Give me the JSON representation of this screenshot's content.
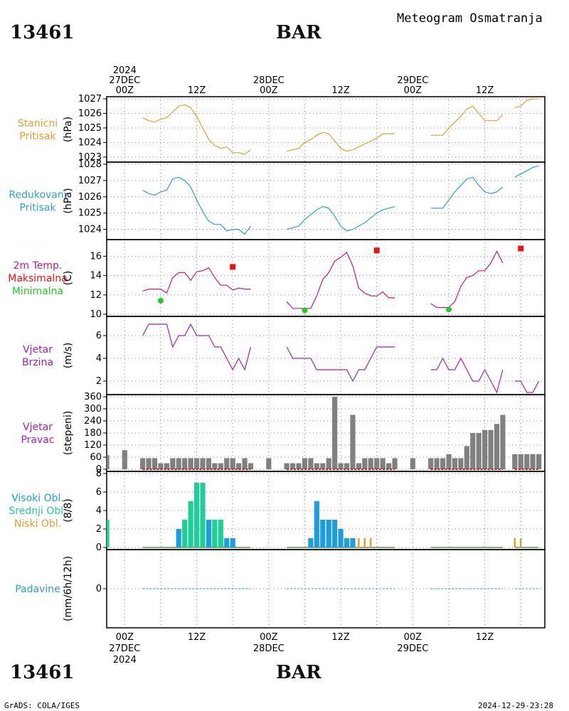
{
  "header": {
    "station": "13461",
    "name": "BAR",
    "title": "Meteogram Osmatranja"
  },
  "footer": {
    "credit": "GrADS: COLA/IGES",
    "timestamp": "2024-12-29-23:28"
  },
  "time_axis": {
    "top": [
      {
        "hour": 0,
        "lines": [
          "2024",
          "27DEC",
          "00Z"
        ]
      },
      {
        "hour": 12,
        "lines": [
          "12Z"
        ]
      },
      {
        "hour": 24,
        "lines": [
          "28DEC",
          "00Z"
        ]
      },
      {
        "hour": 36,
        "lines": [
          "12Z"
        ]
      },
      {
        "hour": 48,
        "lines": [
          "29DEC",
          "00Z"
        ]
      },
      {
        "hour": 60,
        "lines": [
          "12Z"
        ]
      }
    ],
    "bottom": [
      {
        "hour": 0,
        "lines": [
          "00Z",
          "27DEC",
          "2024"
        ]
      },
      {
        "hour": 12,
        "lines": [
          "12Z"
        ]
      },
      {
        "hour": 24,
        "lines": [
          "00Z",
          "28DEC"
        ]
      },
      {
        "hour": 36,
        "lines": [
          "12Z"
        ]
      },
      {
        "hour": 48,
        "lines": [
          "00Z",
          "29DEC"
        ]
      },
      {
        "hour": 60,
        "lines": [
          "12Z"
        ]
      }
    ],
    "x_range_hours": [
      -3,
      70
    ]
  },
  "colors": {
    "station_pressure": "#e0a030",
    "reduced_pressure": "#2ea0d0",
    "tmax": "#ee1111",
    "tmin": "#22cc22",
    "temp_line": "#cc1a7a",
    "wind": "#a020c0",
    "bars": "#808080",
    "high_cloud": "#1b9de0",
    "mid_cloud": "#1fcf98",
    "low_cloud": "#e0a030",
    "precip": "#2ea0d0",
    "grid": "#888888"
  },
  "panels": [
    {
      "key": "sp",
      "labels": [
        {
          "text": "Stanicni",
          "color": "#e0a030"
        },
        {
          "text": "Pritisak",
          "color": "#e0a030"
        }
      ],
      "unit": "(hPa)"
    },
    {
      "key": "rp",
      "labels": [
        {
          "text": "Redukovani",
          "color": "#2ea0d0"
        },
        {
          "text": "Pritisak",
          "color": "#2ea0d0"
        }
      ],
      "unit": "(hPa)"
    },
    {
      "key": "t",
      "labels": [
        {
          "text": "2m Temp.",
          "color": "#cc1a7a"
        },
        {
          "text": "Maksimalna",
          "color": "#ee1111"
        },
        {
          "text": "Minimalna",
          "color": "#22cc22"
        }
      ],
      "unit": "(C)"
    },
    {
      "key": "ws",
      "labels": [
        {
          "text": "Vjetar",
          "color": "#a020c0"
        },
        {
          "text": "Brzina",
          "color": "#a020c0"
        }
      ],
      "unit": "(m/s)"
    },
    {
      "key": "wd",
      "labels": [
        {
          "text": "Vjetar",
          "color": "#a020c0"
        },
        {
          "text": "Pravac",
          "color": "#a020c0"
        }
      ],
      "unit": "(stepeni)"
    },
    {
      "key": "cl",
      "labels": [
        {
          "text": "Visoki Obl.",
          "color": "#1b9de0"
        },
        {
          "text": "Srednji Obl.",
          "color": "#1fcf98"
        },
        {
          "text": "Niski Obl.",
          "color": "#e0a030"
        }
      ],
      "unit": "(8/8)"
    },
    {
      "key": "pr",
      "labels": [
        {
          "text": "Padavine",
          "color": "#2ea0d0"
        }
      ],
      "unit": "(mm/6h/12h)"
    }
  ],
  "chart_data": [
    {
      "type": "line",
      "name": "Stanicni Pritisak",
      "ylabel": "(hPa)",
      "ylim": [
        1022.8,
        1027
      ],
      "yticks": [
        1023,
        1024,
        1025,
        1026,
        1027
      ],
      "segments": [
        {
          "x": [
            3,
            4,
            5,
            6,
            7,
            8,
            9,
            10,
            11,
            12,
            13,
            14,
            15,
            16,
            17,
            18,
            19,
            20,
            21
          ],
          "y": [
            1025.7,
            1025.5,
            1025.4,
            1025.6,
            1025.7,
            1026.1,
            1026.5,
            1026.6,
            1026.4,
            1025.8,
            1025.0,
            1024.2,
            1023.8,
            1023.6,
            1023.7,
            1023.3,
            1023.3,
            1023.2,
            1023.5
          ]
        },
        {
          "x": [
            27,
            28,
            29,
            30,
            31,
            32,
            33,
            34,
            35,
            36,
            37,
            38,
            39,
            40,
            41,
            42,
            43,
            44,
            45
          ],
          "y": [
            1023.4,
            1023.5,
            1023.6,
            1024.0,
            1024.2,
            1024.5,
            1024.7,
            1024.6,
            1024.1,
            1023.6,
            1023.4,
            1023.5,
            1023.7,
            1023.9,
            1024.1,
            1024.3,
            1024.6,
            1024.6,
            1024.6
          ]
        },
        {
          "x": [
            51,
            52,
            53,
            54,
            55,
            56,
            57,
            58,
            59,
            60,
            61,
            62,
            63
          ],
          "y": [
            1024.5,
            1024.5,
            1024.5,
            1025.0,
            1025.4,
            1025.8,
            1026.3,
            1026.5,
            1026.0,
            1025.5,
            1025.5,
            1025.5,
            1025.9
          ]
        },
        {
          "x": [
            65,
            66,
            67,
            68,
            69
          ],
          "y": [
            1026.4,
            1026.5,
            1026.9,
            1027.0,
            1027.0
          ]
        }
      ]
    },
    {
      "type": "line",
      "name": "Redukovani Pritisak",
      "ylabel": "(hPa)",
      "ylim": [
        1023.5,
        1028
      ],
      "yticks": [
        1024,
        1025,
        1026,
        1027,
        1028
      ],
      "segments": [
        {
          "x": [
            3,
            4,
            5,
            6,
            7,
            8,
            9,
            10,
            11,
            12,
            13,
            14,
            15,
            16,
            17,
            18,
            19,
            20,
            21
          ],
          "y": [
            1026.4,
            1026.2,
            1026.1,
            1026.3,
            1026.4,
            1027.1,
            1027.2,
            1027.0,
            1026.6,
            1025.8,
            1025.1,
            1024.5,
            1024.3,
            1024.3,
            1023.9,
            1024.0,
            1024.0,
            1023.7,
            1024.2
          ]
        },
        {
          "x": [
            27,
            28,
            29,
            30,
            31,
            32,
            33,
            34,
            35,
            36,
            37,
            38,
            39,
            40,
            41,
            42,
            43,
            44,
            45
          ],
          "y": [
            1024.0,
            1024.1,
            1024.2,
            1024.6,
            1024.9,
            1025.2,
            1025.4,
            1025.3,
            1024.8,
            1024.2,
            1023.9,
            1024.0,
            1024.2,
            1024.4,
            1024.7,
            1025.0,
            1025.2,
            1025.3,
            1025.4
          ]
        },
        {
          "x": [
            51,
            52,
            53,
            54,
            55,
            56,
            57,
            58,
            59,
            60,
            61,
            62,
            63
          ],
          "y": [
            1025.3,
            1025.3,
            1025.3,
            1025.8,
            1026.3,
            1026.7,
            1027.1,
            1027.2,
            1026.7,
            1026.3,
            1026.2,
            1026.3,
            1026.6
          ]
        },
        {
          "x": [
            65,
            66,
            67,
            68,
            69
          ],
          "y": [
            1027.2,
            1027.4,
            1027.6,
            1027.8,
            1027.9
          ]
        }
      ]
    },
    {
      "type": "line",
      "name": "2m Temp.",
      "ylabel": "(C)",
      "ylim": [
        10,
        17.5
      ],
      "yticks": [
        10,
        12,
        14,
        16
      ],
      "segments": [
        {
          "x": [
            3,
            4,
            5,
            6,
            7,
            8,
            9,
            10,
            11,
            12,
            13,
            14,
            15,
            16,
            17,
            18,
            19,
            20,
            21
          ],
          "y": [
            12.4,
            12.6,
            12.6,
            12.6,
            12.2,
            13.8,
            14.3,
            14.3,
            13.5,
            14.4,
            14.5,
            14.8,
            13.8,
            13.0,
            13.0,
            12.5,
            12.7,
            12.6,
            12.6
          ]
        },
        {
          "x": [
            27,
            28,
            29,
            30,
            31,
            32,
            33,
            34,
            35,
            36,
            37,
            38,
            39,
            40,
            41,
            42,
            43,
            44,
            45
          ],
          "y": [
            11.3,
            10.6,
            10.6,
            10.6,
            10.6,
            11.9,
            13.6,
            14.3,
            15.5,
            15.9,
            16.4,
            15.0,
            12.7,
            12.2,
            11.9,
            11.9,
            12.3,
            11.7,
            11.7
          ]
        },
        {
          "x": [
            51,
            52,
            53,
            54,
            55,
            56,
            57,
            58,
            59,
            60,
            61,
            62,
            63
          ],
          "y": [
            11.1,
            10.7,
            10.7,
            10.7,
            11.3,
            12.9,
            13.8,
            14.0,
            14.5,
            14.5,
            15.3,
            16.5,
            15.3
          ]
        }
      ],
      "max_points": [
        {
          "x": 18,
          "y": 14.9
        },
        {
          "x": 42,
          "y": 16.6
        },
        {
          "x": 66,
          "y": 16.8
        }
      ],
      "min_points": [
        {
          "x": 6,
          "y": 11.4
        },
        {
          "x": 30,
          "y": 10.4
        },
        {
          "x": 54,
          "y": 10.5
        }
      ]
    },
    {
      "type": "line",
      "name": "Vjetar Brzina",
      "ylabel": "(m/s)",
      "ylim": [
        1,
        7.5
      ],
      "yticks": [
        2,
        4,
        6
      ],
      "segments": [
        {
          "x": [
            3,
            4,
            5,
            6,
            7,
            8,
            9,
            10,
            11,
            12,
            13,
            14,
            15,
            16,
            17,
            18,
            19,
            20,
            21
          ],
          "y": [
            6,
            7,
            7,
            7,
            7,
            5,
            6,
            6,
            7,
            6,
            6,
            6,
            5,
            5,
            4,
            3,
            4,
            3,
            5
          ]
        },
        {
          "x": [
            27,
            28,
            29,
            30,
            31,
            32,
            33,
            34,
            35,
            36,
            37,
            38,
            39,
            40,
            41,
            42,
            43,
            44,
            45
          ],
          "y": [
            5,
            4,
            4,
            4,
            4,
            3,
            3,
            3,
            3,
            3,
            3,
            2,
            3,
            3,
            4,
            5,
            5,
            5,
            5
          ]
        },
        {
          "x": [
            51,
            52,
            53,
            54,
            55,
            56,
            57,
            58,
            59,
            60,
            61,
            62,
            63
          ],
          "y": [
            3,
            3,
            4,
            3,
            3,
            4,
            3,
            2,
            2,
            3,
            2,
            1,
            3
          ]
        },
        {
          "x": [
            65,
            66,
            67,
            68,
            69
          ],
          "y": [
            2,
            2,
            1,
            1,
            2
          ]
        }
      ]
    },
    {
      "type": "bar",
      "name": "Vjetar Pravac",
      "ylabel": "(stepeni)",
      "ylim": [
        0,
        360
      ],
      "yticks": [
        0,
        60,
        120,
        180,
        240,
        300,
        360
      ],
      "x": [
        -3,
        0,
        3,
        4,
        5,
        6,
        7,
        8,
        9,
        10,
        11,
        12,
        13,
        14,
        15,
        16,
        17,
        18,
        19,
        20,
        21,
        24,
        27,
        28,
        29,
        30,
        31,
        32,
        33,
        34,
        35,
        36,
        37,
        38,
        39,
        40,
        41,
        42,
        43,
        44,
        45,
        48,
        51,
        52,
        53,
        54,
        55,
        56,
        57,
        58,
        59,
        60,
        61,
        62,
        63,
        65,
        66,
        67,
        68,
        69
      ],
      "values": [
        70,
        95,
        55,
        55,
        55,
        30,
        30,
        55,
        55,
        55,
        55,
        55,
        55,
        55,
        30,
        30,
        55,
        55,
        30,
        55,
        30,
        55,
        30,
        30,
        30,
        55,
        55,
        30,
        30,
        55,
        360,
        30,
        30,
        270,
        30,
        55,
        55,
        55,
        55,
        30,
        55,
        55,
        55,
        55,
        55,
        75,
        55,
        55,
        115,
        180,
        180,
        195,
        195,
        225,
        270,
        75,
        75,
        75,
        75,
        75
      ]
    },
    {
      "type": "bar",
      "name": "Oblaci",
      "ylabel": "(8/8)",
      "ylim": [
        0,
        8
      ],
      "yticks": [
        0,
        2,
        4,
        6,
        8
      ],
      "series": [
        {
          "name": "Visoki Obl.",
          "x": [
            9,
            13,
            14,
            15,
            16,
            17,
            18,
            31,
            32,
            33,
            34,
            35,
            36,
            37,
            38
          ],
          "values": [
            2,
            3,
            3,
            2,
            1,
            1,
            1,
            1,
            5,
            3,
            3,
            3,
            2,
            1,
            1
          ]
        },
        {
          "name": "Srednji Obl.",
          "x": [
            -3,
            10,
            11,
            12,
            13,
            15,
            16
          ],
          "values": [
            3,
            3,
            5,
            7,
            7,
            3,
            3
          ]
        },
        {
          "name": "Niski Obl.",
          "x": [
            39,
            40,
            41,
            65,
            66
          ],
          "values": [
            1,
            1,
            1,
            1,
            1
          ]
        }
      ]
    },
    {
      "type": "line",
      "name": "Padavine",
      "ylabel": "(mm/6h/12h)",
      "ylim": [
        -1,
        1
      ],
      "yticks": [
        0
      ],
      "segments": [
        {
          "x": [
            3,
            21
          ],
          "y": [
            0,
            0
          ]
        },
        {
          "x": [
            27,
            45
          ],
          "y": [
            0,
            0
          ]
        },
        {
          "x": [
            51,
            63
          ],
          "y": [
            0,
            0
          ]
        },
        {
          "x": [
            65,
            69
          ],
          "y": [
            0,
            0
          ]
        }
      ]
    }
  ]
}
